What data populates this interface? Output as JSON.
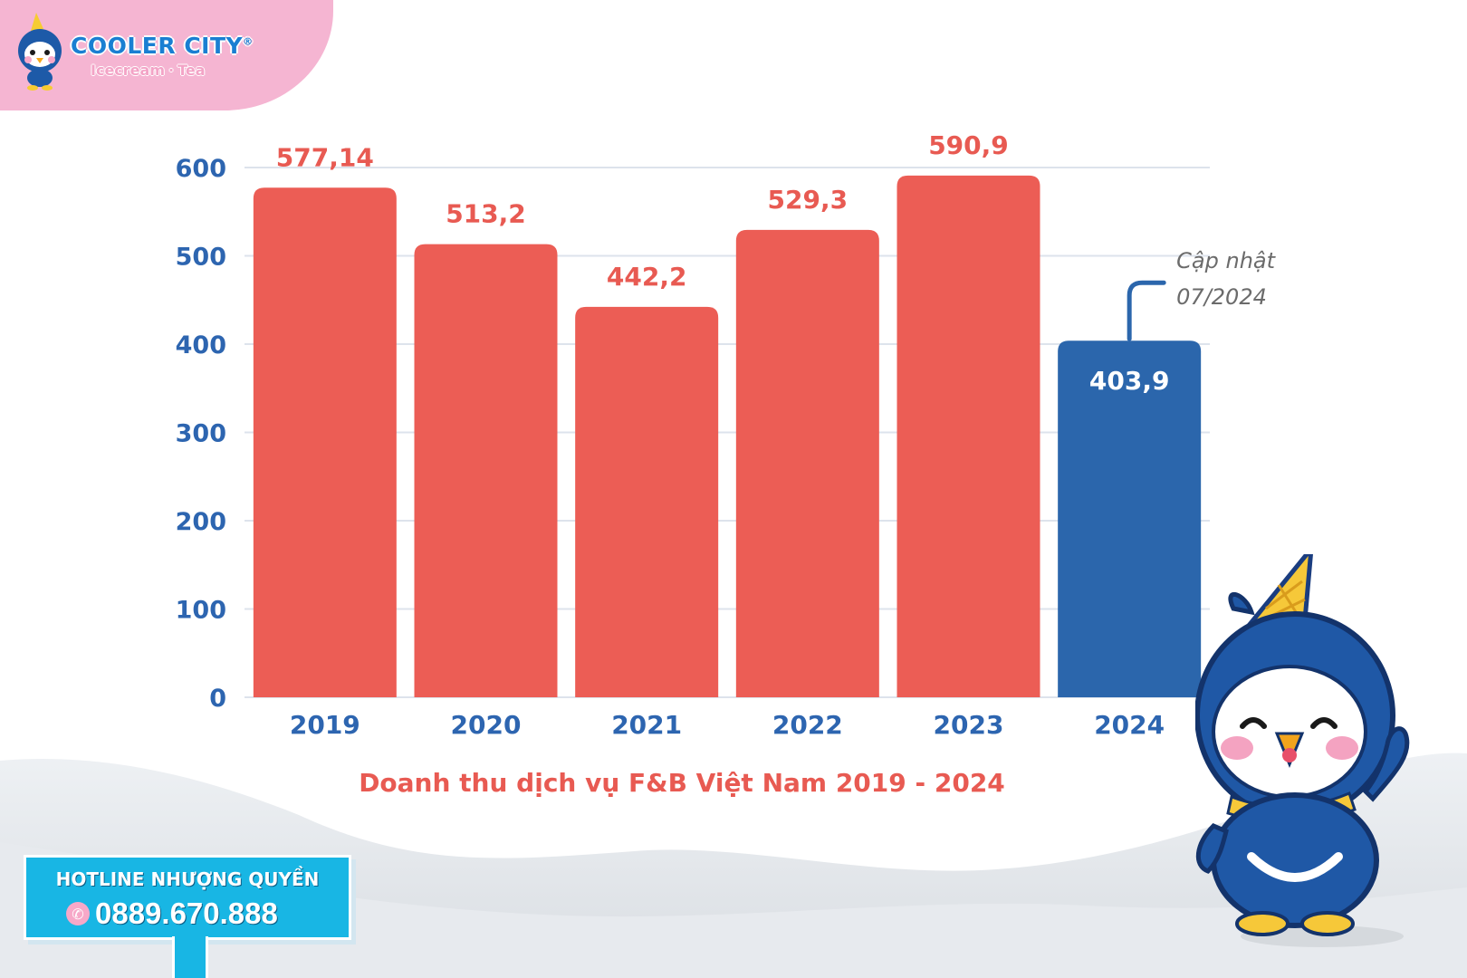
{
  "brand": {
    "name": "COOLER CITY",
    "registered": "®",
    "sub_left": "Icecream",
    "sub_dot": "·",
    "sub_right": "Tea",
    "logo_icon": "penguin-mascot-icon"
  },
  "hotline": {
    "title": "HOTLINE NHƯỢNG QUYỀN",
    "phone": "0889.670.888",
    "phone_icon": "phone-icon"
  },
  "chart_data": {
    "type": "bar",
    "title": "Doanh thu dịch vụ F&B Việt Nam 2019 - 2024",
    "categories": [
      "2019",
      "2020",
      "2021",
      "2022",
      "2023",
      "2024"
    ],
    "values": [
      577.14,
      513.2,
      442.2,
      529.3,
      590.9,
      403.9
    ],
    "value_labels": [
      "577,14",
      "513,2",
      "442,2",
      "529,3",
      "590,9",
      "403,9"
    ],
    "yticks": [
      "0",
      "100",
      "200",
      "300",
      "400",
      "500",
      "600"
    ],
    "ylim": [
      0,
      600
    ],
    "xlabel": "",
    "ylabel": "",
    "grid": true,
    "colors": {
      "default": "#ec5d55",
      "highlight": "#2b66ac",
      "tick": "#2d65b0",
      "label": "#e85a52"
    },
    "highlight_index": 5,
    "annotation": {
      "line1": "Cập nhật",
      "line2": "07/2024",
      "target_index": 5
    }
  },
  "mascot": {
    "icon": "penguin-mascot-icon"
  }
}
